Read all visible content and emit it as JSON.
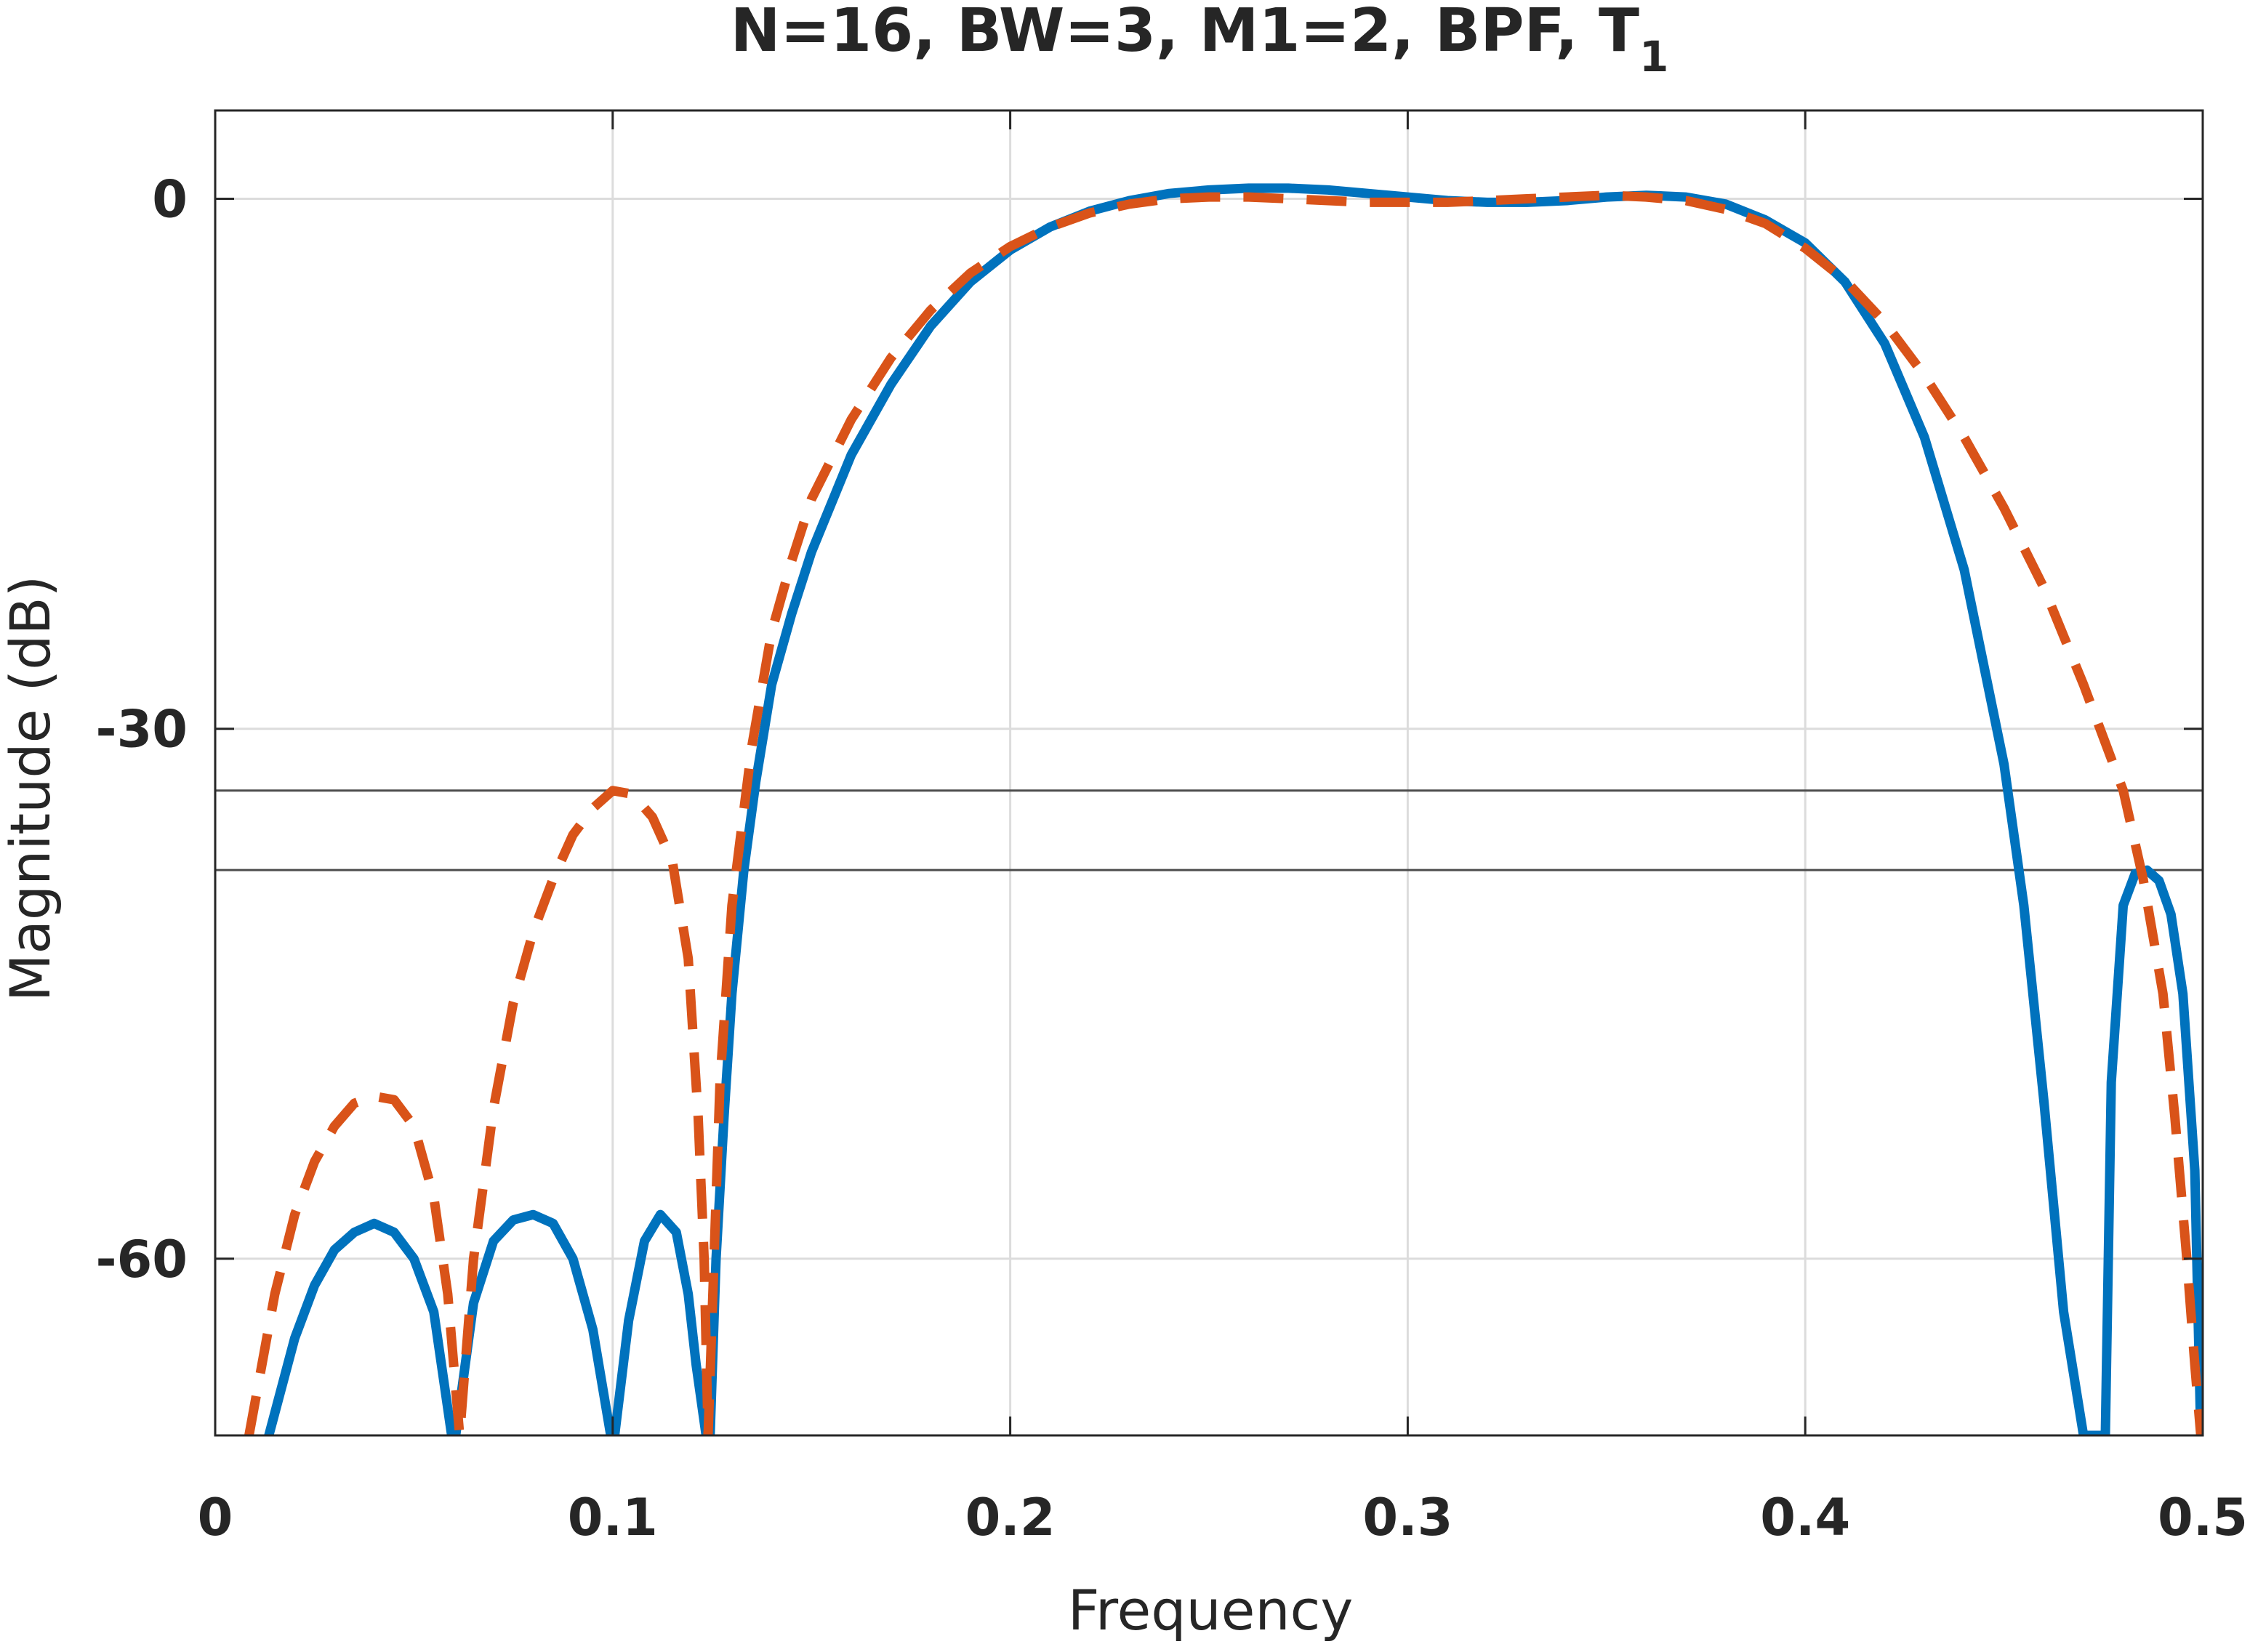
{
  "chart_data": {
    "type": "line",
    "title": "N=16, BW=3, M1=2, BPF, T",
    "title_subscript": "1",
    "xlabel": "Frequency",
    "ylabel": "Magnitude (dB)",
    "xlim": [
      0,
      0.5
    ],
    "ylim": [
      -70,
      5
    ],
    "xticks": [
      0,
      0.1,
      0.2,
      0.3,
      0.4,
      0.5
    ],
    "xtick_labels": [
      "0",
      "0.1",
      "0.2",
      "0.3",
      "0.4",
      "0.5"
    ],
    "yticks": [
      -60,
      -30,
      0
    ],
    "ytick_labels": [
      "-60",
      "-30",
      "0"
    ],
    "grid": true,
    "reference_lines_y": [
      -33.5,
      -38
    ],
    "series": [
      {
        "style": "solid",
        "color": "#0072BD",
        "x": [
          0.0135,
          0.02,
          0.025,
          0.03,
          0.035,
          0.04,
          0.045,
          0.05,
          0.055,
          0.0595,
          0.0605,
          0.065,
          0.07,
          0.075,
          0.08,
          0.085,
          0.09,
          0.095,
          0.0995,
          0.1005,
          0.104,
          0.108,
          0.112,
          0.116,
          0.119,
          0.121,
          0.1235,
          0.1245,
          0.126,
          0.128,
          0.13,
          0.133,
          0.136,
          0.14,
          0.145,
          0.15,
          0.16,
          0.17,
          0.18,
          0.19,
          0.2,
          0.21,
          0.22,
          0.23,
          0.24,
          0.25,
          0.26,
          0.27,
          0.28,
          0.29,
          0.3,
          0.31,
          0.32,
          0.33,
          0.34,
          0.35,
          0.36,
          0.37,
          0.38,
          0.39,
          0.4,
          0.41,
          0.42,
          0.43,
          0.44,
          0.45,
          0.455,
          0.46,
          0.465,
          0.47,
          0.473,
          0.4745,
          0.4755,
          0.477,
          0.48,
          0.483,
          0.486,
          0.489,
          0.492,
          0.495,
          0.498,
          0.4995
        ],
        "y": [
          -70,
          -64.5,
          -61.5,
          -59.5,
          -58.5,
          -58,
          -58.5,
          -60,
          -63,
          -70,
          -70,
          -62.5,
          -59,
          -57.8,
          -57.5,
          -58,
          -60,
          -64,
          -70,
          -70,
          -63.5,
          -59,
          -57.5,
          -58.5,
          -62,
          -66,
          -70,
          -70,
          -60,
          -52,
          -45,
          -38,
          -33,
          -27.5,
          -23.5,
          -20,
          -14.5,
          -10.5,
          -7.2,
          -4.7,
          -2.9,
          -1.6,
          -0.7,
          -0.1,
          0.3,
          0.5,
          0.6,
          0.6,
          0.5,
          0.3,
          0.1,
          -0.1,
          -0.2,
          -0.2,
          -0.1,
          0.1,
          0.2,
          0.1,
          -0.3,
          -1.2,
          -2.5,
          -4.7,
          -8.2,
          -13.5,
          -21,
          -32,
          -40,
          -51,
          -63,
          -70,
          -70,
          -70,
          -70,
          -50,
          -40,
          -38.2,
          -38,
          -38.6,
          -40.5,
          -45,
          -55,
          -70
        ]
      },
      {
        "style": "dashed",
        "color": "#D95319",
        "x": [
          0.0085,
          0.015,
          0.02,
          0.025,
          0.03,
          0.035,
          0.04,
          0.045,
          0.05,
          0.055,
          0.0585,
          0.0615,
          0.065,
          0.07,
          0.075,
          0.08,
          0.085,
          0.09,
          0.095,
          0.1,
          0.105,
          0.11,
          0.115,
          0.119,
          0.1215,
          0.123,
          0.124,
          0.1255,
          0.127,
          0.13,
          0.135,
          0.14,
          0.145,
          0.15,
          0.16,
          0.17,
          0.18,
          0.19,
          0.2,
          0.21,
          0.22,
          0.23,
          0.24,
          0.25,
          0.26,
          0.27,
          0.28,
          0.29,
          0.3,
          0.31,
          0.32,
          0.33,
          0.34,
          0.35,
          0.36,
          0.37,
          0.38,
          0.39,
          0.4,
          0.41,
          0.42,
          0.43,
          0.44,
          0.45,
          0.46,
          0.47,
          0.48,
          0.485,
          0.49,
          0.493,
          0.496,
          0.498,
          0.4995
        ],
        "y": [
          -70,
          -62,
          -57.5,
          -54.5,
          -52.5,
          -51.2,
          -50.8,
          -51,
          -52.5,
          -56.5,
          -62,
          -70,
          -60,
          -51.5,
          -45.5,
          -41.5,
          -38.5,
          -36,
          -34.5,
          -33.5,
          -33.7,
          -35,
          -37.5,
          -43,
          -52,
          -60,
          -70,
          -60,
          -50,
          -40,
          -31,
          -24.5,
          -20.5,
          -17,
          -12.5,
          -9,
          -6.3,
          -4.2,
          -2.7,
          -1.6,
          -0.8,
          -0.3,
          0,
          0.1,
          0.1,
          0,
          -0.1,
          -0.2,
          -0.2,
          -0.2,
          -0.1,
          0,
          0.1,
          0.2,
          0.1,
          -0.1,
          -0.6,
          -1.4,
          -2.8,
          -4.6,
          -7,
          -10,
          -13.5,
          -17.5,
          -22,
          -27.5,
          -33.5,
          -38.5,
          -45,
          -52,
          -60,
          -66,
          -70
        ]
      }
    ]
  }
}
